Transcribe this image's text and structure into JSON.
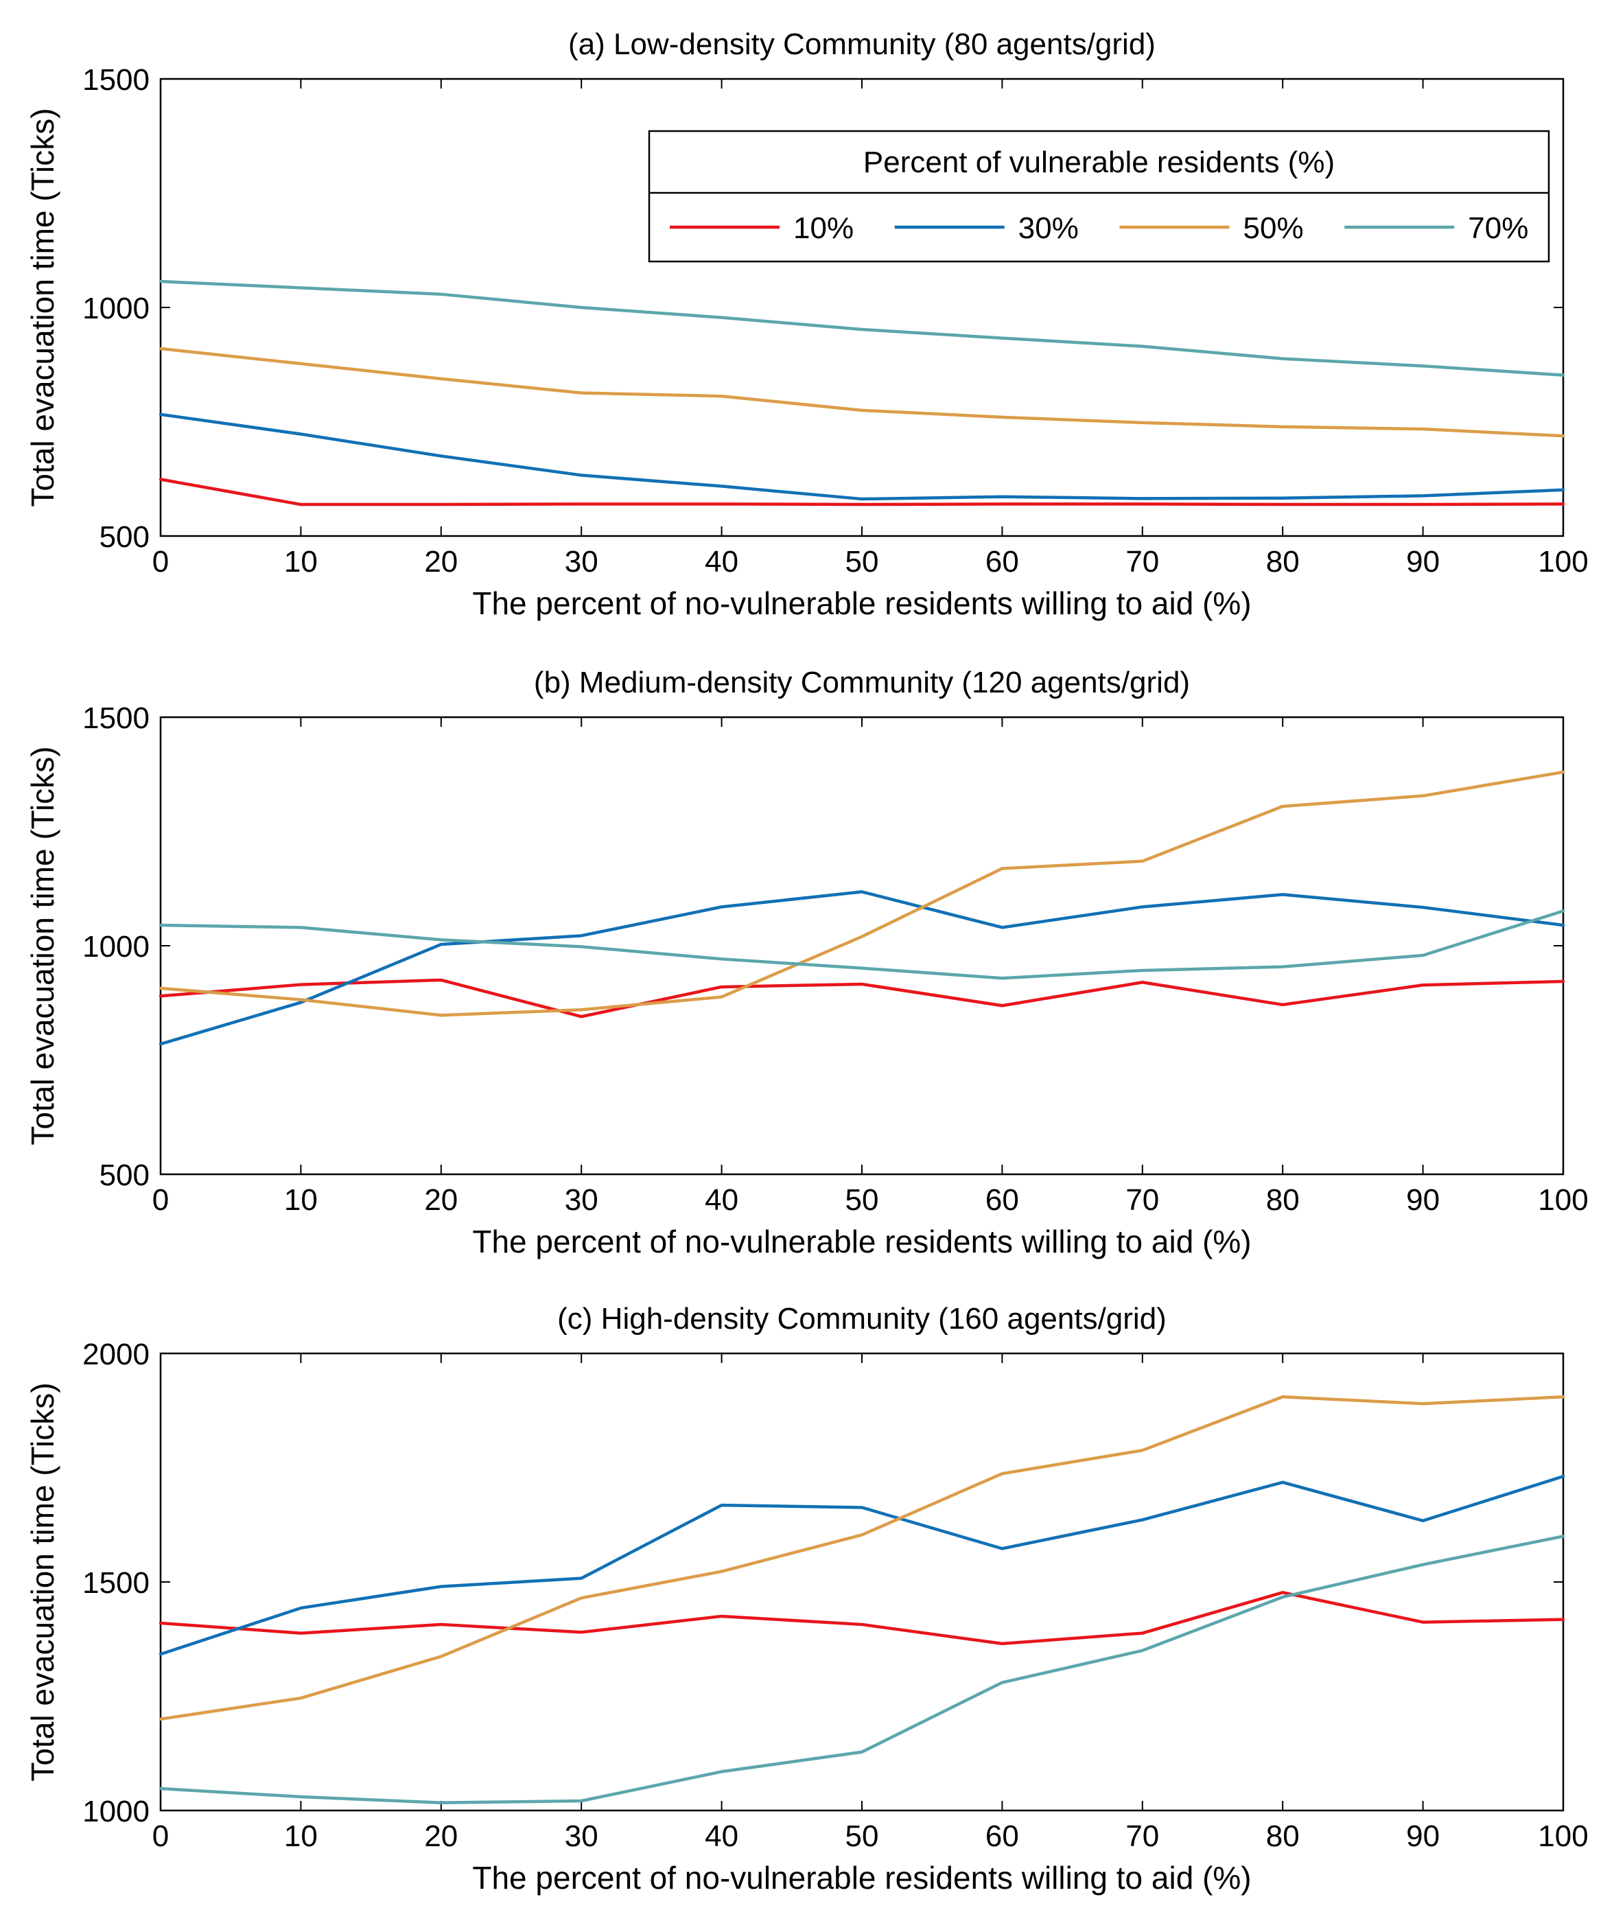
{
  "legend": {
    "title": "Percent of vulnerable residents (%)"
  },
  "series_colors": [
    "#e8151b",
    "#1170b5",
    "#dc9c48",
    "#5ba6ac"
  ],
  "chart_data": [
    {
      "type": "line",
      "title": "(a) Low-density Community (80 agents/grid)",
      "xlabel": "The percent of no-vulnerable residents willing to aid (%)",
      "ylabel": "Total evacuation time (Ticks)",
      "x": [
        0,
        10,
        20,
        30,
        40,
        50,
        60,
        70,
        80,
        90,
        100
      ],
      "xlim": [
        0,
        100
      ],
      "ylim": [
        500,
        1500
      ],
      "xticks": [
        "0",
        "10",
        "20",
        "30",
        "40",
        "50",
        "60",
        "70",
        "80",
        "90",
        "100"
      ],
      "yticks": [
        "500",
        "1000",
        "1500"
      ],
      "ytick_values": [
        500,
        1000,
        1500
      ],
      "legend_position": "top-right",
      "series": [
        {
          "name": "10%",
          "values": [
            624,
            569,
            569,
            570,
            570,
            569,
            570,
            570,
            569,
            569,
            570
          ]
        },
        {
          "name": "30%",
          "values": [
            766,
            723,
            675,
            633,
            609,
            581,
            586,
            582,
            583,
            588,
            601
          ]
        },
        {
          "name": "50%",
          "values": [
            910,
            877,
            844,
            813,
            806,
            775,
            760,
            748,
            739,
            734,
            719
          ]
        },
        {
          "name": "70%",
          "values": [
            1057,
            1043,
            1029,
            1000,
            978,
            952,
            933,
            915,
            888,
            872,
            852
          ]
        }
      ]
    },
    {
      "type": "line",
      "title": "(b) Medium-density Community (120 agents/grid)",
      "xlabel": "The percent of no-vulnerable residents willing to aid (%)",
      "ylabel": "Total evacuation time (Ticks)",
      "x": [
        0,
        10,
        20,
        30,
        40,
        50,
        60,
        70,
        80,
        90,
        100
      ],
      "xlim": [
        0,
        100
      ],
      "ylim": [
        500,
        1500
      ],
      "xticks": [
        "0",
        "10",
        "20",
        "30",
        "40",
        "50",
        "60",
        "70",
        "80",
        "90",
        "100"
      ],
      "yticks": [
        "500",
        "1000",
        "1500"
      ],
      "ytick_values": [
        500,
        1000,
        1500
      ],
      "series": [
        {
          "name": "10%",
          "values": [
            890,
            915,
            925,
            845,
            910,
            916,
            869,
            920,
            871,
            914,
            922
          ]
        },
        {
          "name": "30%",
          "values": [
            785,
            876,
            1003,
            1022,
            1085,
            1118,
            1040,
            1085,
            1112,
            1084,
            1045
          ]
        },
        {
          "name": "50%",
          "values": [
            907,
            882,
            848,
            860,
            888,
            1020,
            1169,
            1185,
            1305,
            1328,
            1380
          ]
        },
        {
          "name": "70%",
          "values": [
            1045,
            1040,
            1013,
            998,
            971,
            951,
            929,
            946,
            954,
            979,
            1076
          ]
        }
      ]
    },
    {
      "type": "line",
      "title": "(c) High-density Community (160 agents/grid)",
      "xlabel": "The percent of no-vulnerable residents willing to aid (%)",
      "ylabel": "Total evacuation time (Ticks)",
      "x": [
        0,
        10,
        20,
        30,
        40,
        50,
        60,
        70,
        80,
        90,
        100
      ],
      "xlim": [
        0,
        100
      ],
      "ylim": [
        1000,
        2000
      ],
      "xticks": [
        "0",
        "10",
        "20",
        "30",
        "40",
        "50",
        "60",
        "70",
        "80",
        "90",
        "100"
      ],
      "yticks": [
        "1000",
        "1500",
        "2000"
      ],
      "ytick_values": [
        1000,
        1500,
        2000
      ],
      "series": [
        {
          "name": "10%",
          "values": [
            1410,
            1388,
            1407,
            1390,
            1425,
            1407,
            1365,
            1388,
            1477,
            1412,
            1418
          ]
        },
        {
          "name": "30%",
          "values": [
            1342,
            1443,
            1490,
            1508,
            1668,
            1663,
            1573,
            1636,
            1718,
            1634,
            1731
          ]
        },
        {
          "name": "50%",
          "values": [
            1200,
            1246,
            1337,
            1465,
            1523,
            1603,
            1737,
            1788,
            1905,
            1890,
            1905
          ]
        },
        {
          "name": "70%",
          "values": [
            1048,
            1030,
            1017,
            1021,
            1085,
            1128,
            1280,
            1350,
            1467,
            1538,
            1600
          ]
        }
      ]
    }
  ]
}
